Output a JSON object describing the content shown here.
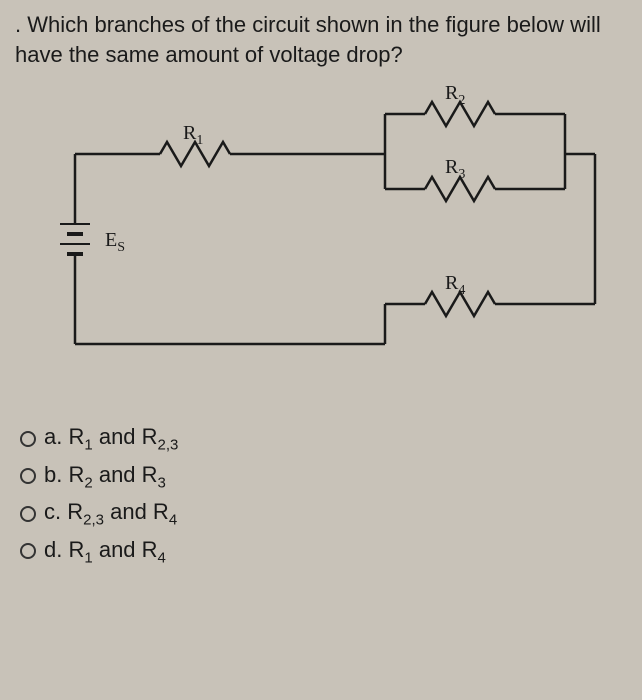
{
  "question": {
    "prefix": ". ",
    "text": "Which branches of the circuit shown in the figure below will have the same amount of voltage drop?"
  },
  "circuit": {
    "stroke_color": "#1a1a1a",
    "stroke_width": 2.5,
    "labels": {
      "R1": "R<sub>1</sub>",
      "R2": "R<sub>2</sub>",
      "R3": "R<sub>3</sub>",
      "R4": "R<sub>4</sub>",
      "Es": "E<sub>S</sub>"
    }
  },
  "options": {
    "a": {
      "prefix": "a.",
      "text": "R<sub>1</sub> and R<sub>2,3</sub>"
    },
    "b": {
      "prefix": "b.",
      "text": "R<sub>2</sub> and R<sub>3</sub>"
    },
    "c": {
      "prefix": "c.",
      "text": "R<sub>2,3</sub> and R<sub>4</sub>"
    },
    "d": {
      "prefix": "d.",
      "text": "R<sub>1</sub> and R<sub>4</sub>"
    }
  }
}
